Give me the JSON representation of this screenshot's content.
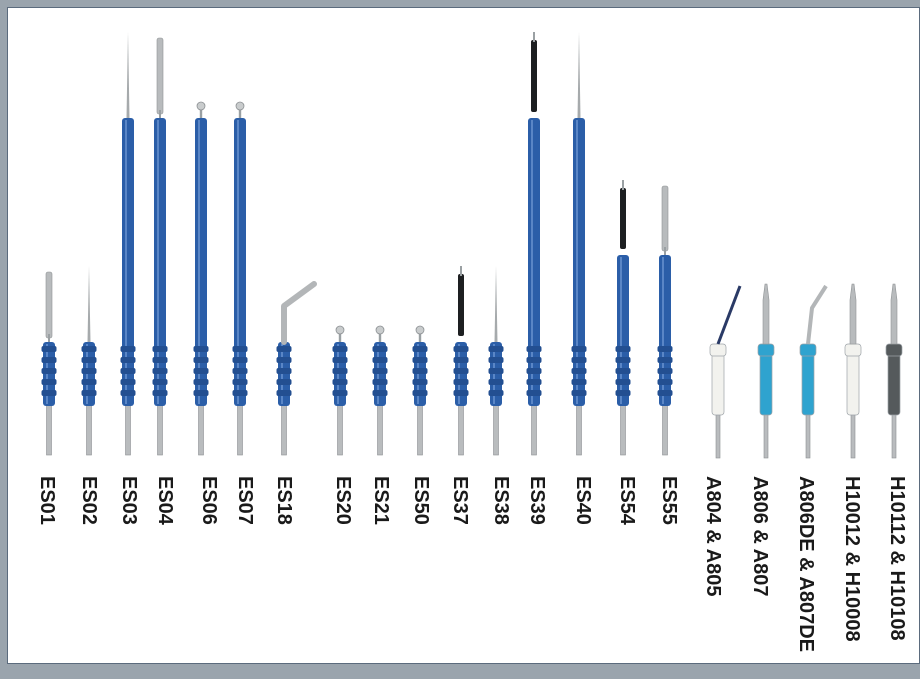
{
  "colors": {
    "background": "#ffffff",
    "frame": "#5b6b7d",
    "outer": "#9aa4ad",
    "blue_handle": "#2b5ea8",
    "light_blue": "#2fa3cf",
    "white_handle": "#f2f2ee",
    "gray_handle": "#555a5c"
  },
  "electrodes": [
    {
      "label": "ES01",
      "style": "blue-short",
      "tip": "blade"
    },
    {
      "label": "ES02",
      "style": "blue-short",
      "tip": "needle"
    },
    {
      "label": "ES03",
      "style": "blue-long",
      "tip": "needle"
    },
    {
      "label": "ES04",
      "style": "blue-long",
      "tip": "blade"
    },
    {
      "label": "ES06",
      "style": "blue-long",
      "tip": "ball"
    },
    {
      "label": "ES07",
      "style": "blue-long",
      "tip": "ball"
    },
    {
      "label": "ES18",
      "style": "blue-short",
      "tip": "angled-blade"
    },
    {
      "label": "ES20",
      "style": "blue-short",
      "tip": "ball"
    },
    {
      "label": "ES21",
      "style": "blue-short",
      "tip": "ball"
    },
    {
      "label": "ES50",
      "style": "blue-short",
      "tip": "ball"
    },
    {
      "label": "ES37",
      "style": "blue-short",
      "tip": "black-blade"
    },
    {
      "label": "ES38",
      "style": "blue-short",
      "tip": "needle"
    },
    {
      "label": "ES39",
      "style": "blue-long",
      "tip": "black-blade"
    },
    {
      "label": "ES40",
      "style": "blue-long",
      "tip": "needle"
    },
    {
      "label": "ES54",
      "style": "blue-mid",
      "tip": "black-blade"
    },
    {
      "label": "ES55",
      "style": "blue-mid",
      "tip": "blade"
    },
    {
      "label": "A804 & A805",
      "style": "white-small",
      "tip": "angled-needle"
    },
    {
      "label": "A806 & A807",
      "style": "lightblue-small",
      "tip": "blade"
    },
    {
      "label": "A806DE & A807DE",
      "style": "lightblue-small",
      "tip": "angled-blade"
    },
    {
      "label": "H10012 & H10008",
      "style": "white-small",
      "tip": "blade"
    },
    {
      "label": "H10112 & H10108",
      "style": "gray-small",
      "tip": "blade"
    }
  ]
}
